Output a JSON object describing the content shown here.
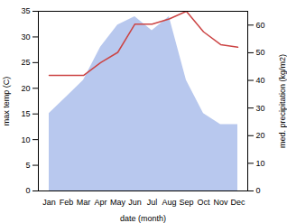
{
  "chart_data": {
    "type": "line",
    "xlabel": "date (month)",
    "ylabel": "max temp (C)",
    "y2label": "med. precipitation (kg/m2)",
    "categories": [
      "Jan",
      "Feb",
      "Mar",
      "Apr",
      "May",
      "Jun",
      "Jul",
      "Aug",
      "Sep",
      "Oct",
      "Nov",
      "Dec"
    ],
    "series": [
      {
        "type": "area",
        "axis": "y2",
        "color": "#b8c8ee",
        "values": [
          28,
          34,
          40,
          52,
          60,
          63,
          58,
          63,
          40,
          28,
          24,
          24
        ]
      },
      {
        "type": "line",
        "color": "#cc4444",
        "values": [
          22.5,
          22.5,
          22.5,
          25.0,
          27.0,
          32.5,
          32.5,
          33.5,
          35.0,
          31.0,
          28.5,
          28.0
        ]
      }
    ],
    "ylim": [
      0,
      35
    ],
    "yticks": [
      0,
      5,
      10,
      15,
      20,
      25,
      30,
      35
    ],
    "y2lim": [
      0,
      65
    ],
    "y2ticks": [
      0,
      10,
      20,
      30,
      40,
      50,
      60
    ]
  }
}
